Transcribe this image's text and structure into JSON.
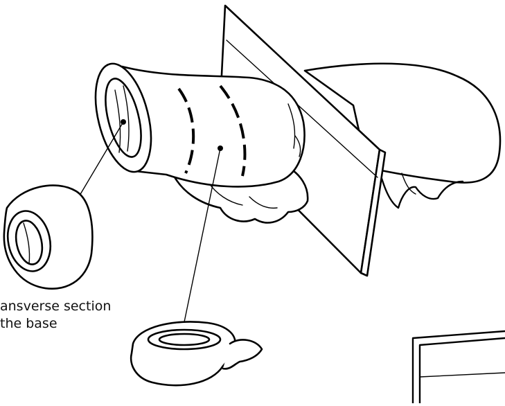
{
  "labels": {
    "caption_line1": "ansverse section",
    "caption_line2": "the base"
  },
  "colors": {
    "ink": "#000000",
    "paper": "#ffffff"
  }
}
